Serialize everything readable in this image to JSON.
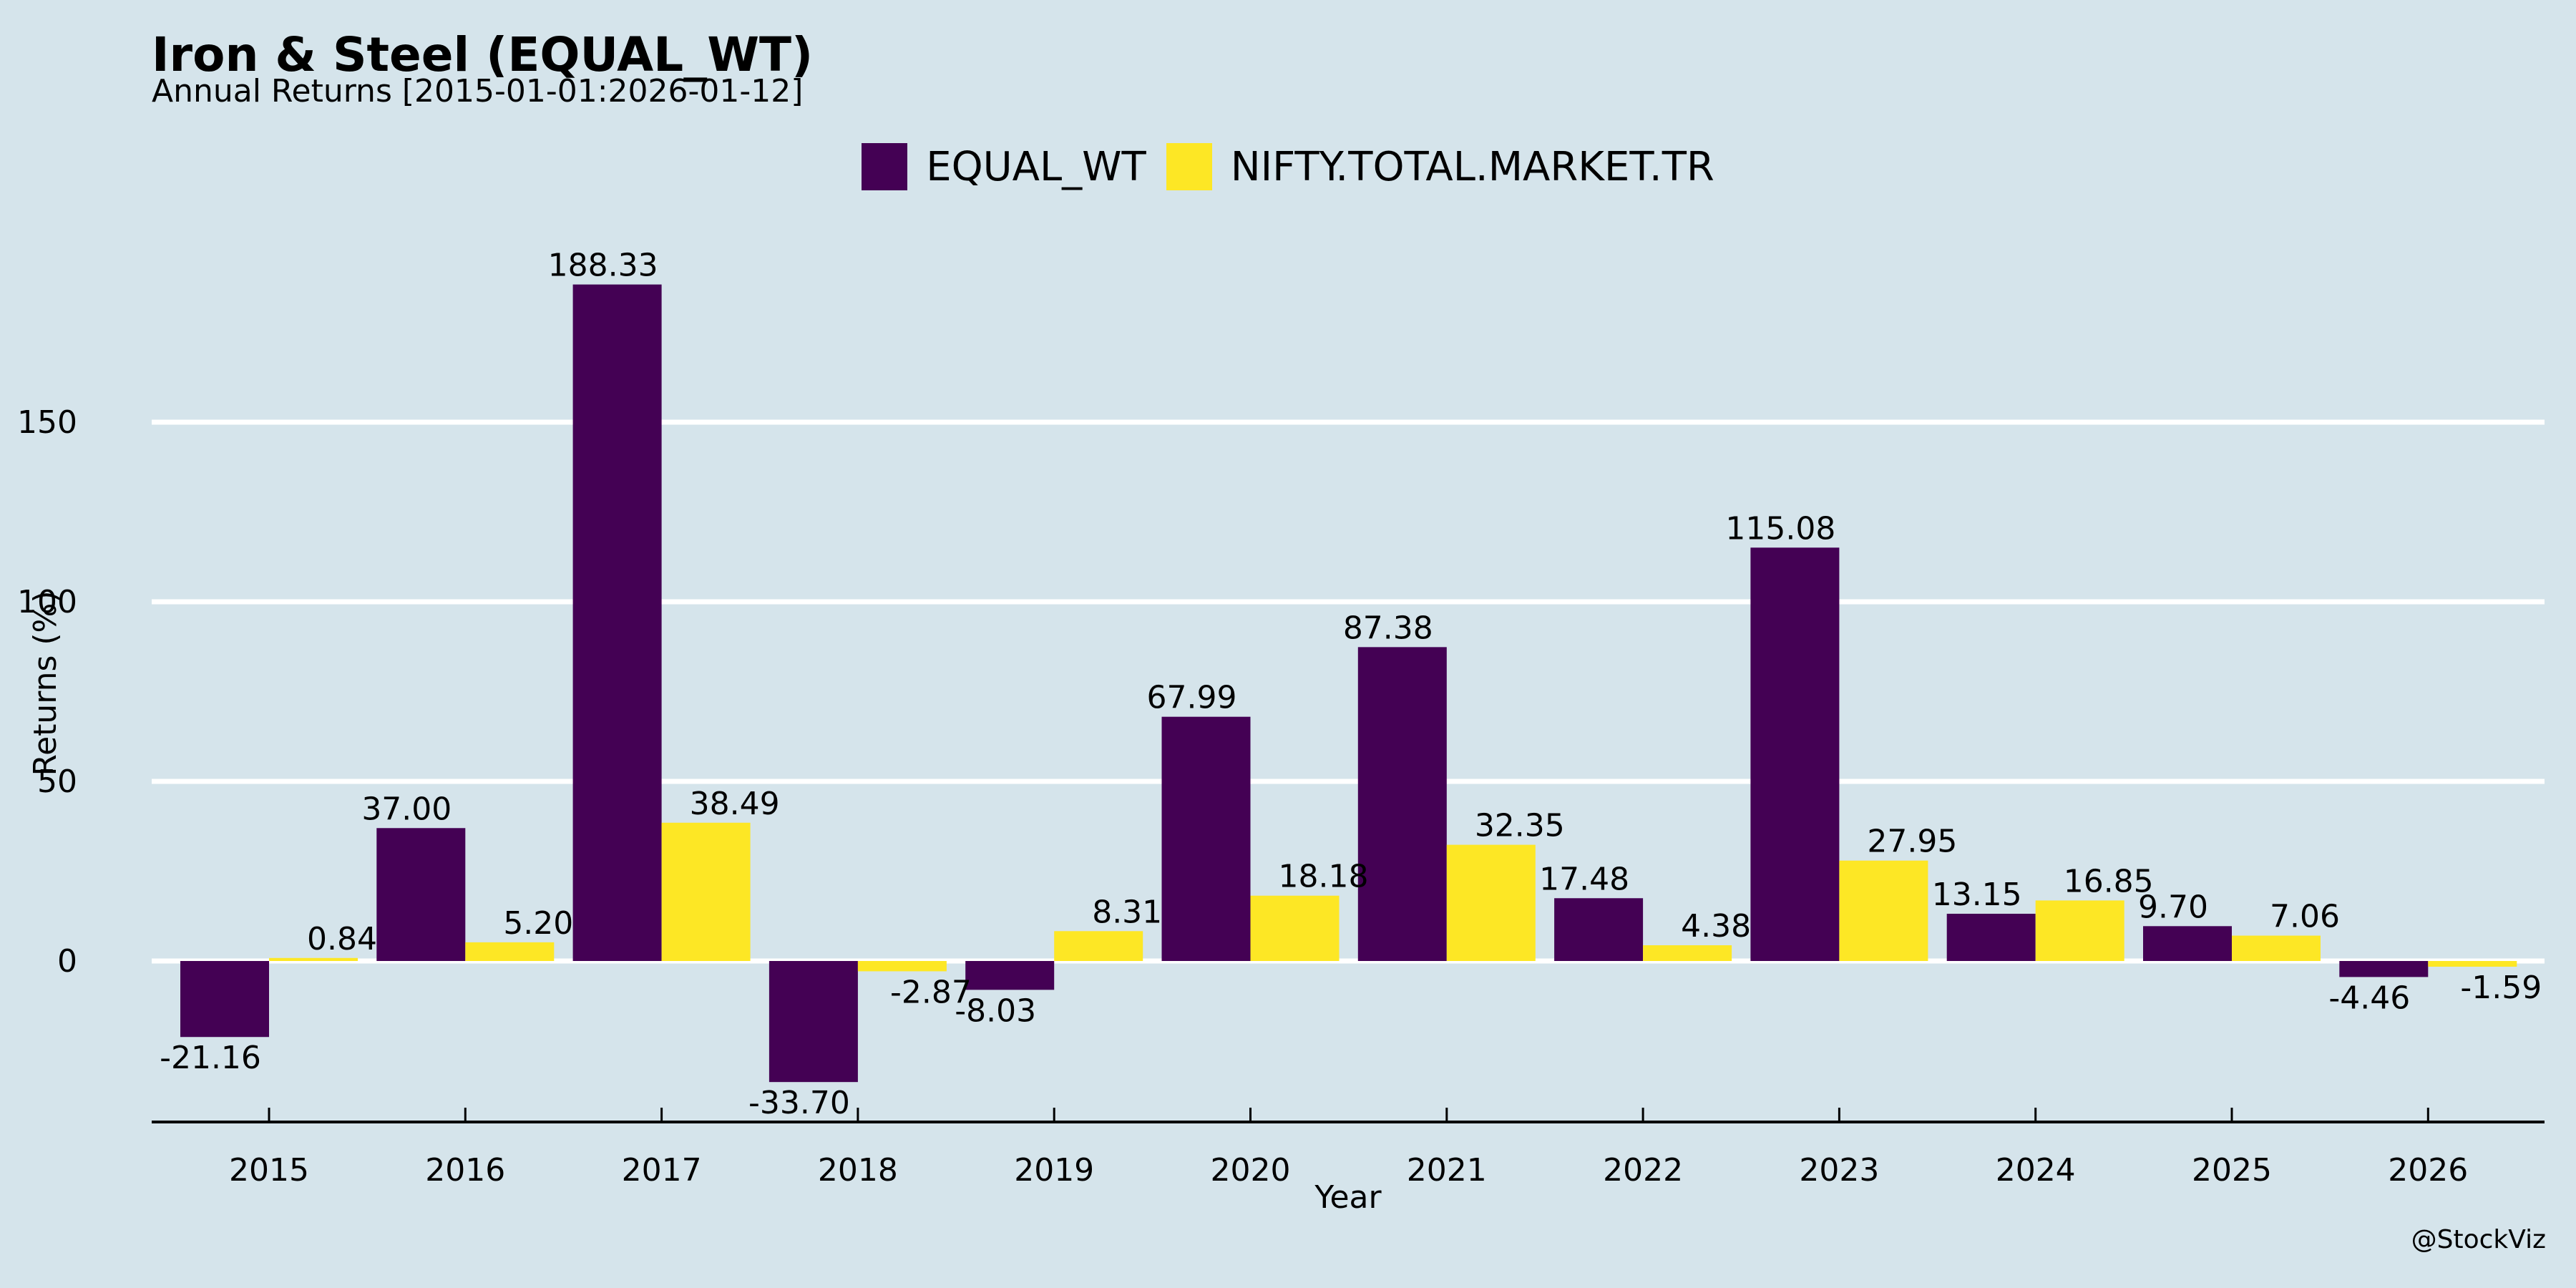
{
  "chart_data": {
    "type": "bar",
    "title": "Iron & Steel (EQUAL_WT)",
    "subtitle": "Annual Returns [2015-01-01:2026-01-12]",
    "xlabel": "Year",
    "ylabel": "Returns (%)",
    "categories": [
      "2015",
      "2016",
      "2017",
      "2018",
      "2019",
      "2020",
      "2021",
      "2022",
      "2023",
      "2024",
      "2025",
      "2026"
    ],
    "series": [
      {
        "name": "EQUAL_WT",
        "color": "#440154",
        "values": [
          -21.16,
          37.0,
          188.33,
          -33.7,
          -8.03,
          67.99,
          87.38,
          17.48,
          115.08,
          13.15,
          9.7,
          -4.46
        ],
        "labels": [
          "-21.16",
          "37.00",
          "188.33",
          "-33.70",
          "-8.03",
          "67.99",
          "87.38",
          "17.48",
          "115.08",
          "13.15",
          "9.70",
          "-4.46"
        ]
      },
      {
        "name": "NIFTY.TOTAL.MARKET.TR",
        "color": "#fde725",
        "values": [
          0.84,
          5.2,
          38.49,
          -2.87,
          8.31,
          18.18,
          32.35,
          4.38,
          27.95,
          16.85,
          7.06,
          -1.59
        ],
        "labels": [
          "0.84",
          "5.20",
          "38.49",
          "-2.87",
          "8.31",
          "18.18",
          "32.35",
          "4.38",
          "27.95",
          "16.85",
          "7.06",
          "-1.59"
        ]
      }
    ],
    "yticks": [
      "0",
      "50",
      "100",
      "150"
    ],
    "ytick_values": [
      0,
      50,
      100,
      150
    ],
    "ylim": [
      -44.9,
      197.9
    ],
    "grid": true,
    "legend_position": "top-center",
    "credit": "@StockViz"
  }
}
